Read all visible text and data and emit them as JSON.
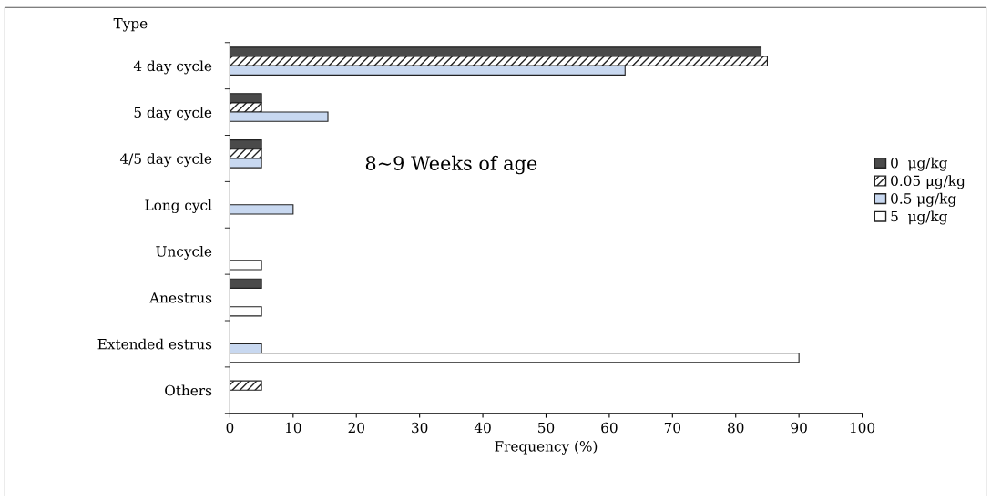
{
  "chart_data": {
    "type": "bar",
    "orientation": "horizontal",
    "ylabel": "Type",
    "xlabel": "Frequency (%)",
    "categories": [
      "4 day cycle",
      "5 day cycle",
      "4/5 day cycle",
      "Long cycl",
      "Uncycle",
      "Anestrus",
      "Extended estrus",
      "Others"
    ],
    "series": [
      {
        "name": "0  μg/kg",
        "color": "#4a4a4a",
        "values": [
          84,
          5,
          5,
          null,
          null,
          5,
          null,
          null
        ]
      },
      {
        "name": "0.05 μg/kg",
        "color": "#222222",
        "values": [
          85,
          5,
          5,
          null,
          null,
          null,
          null,
          5
        ]
      },
      {
        "name": "0.5 μg/kg",
        "color": "#c8d8f0",
        "values": [
          62.5,
          15.5,
          5,
          10,
          null,
          null,
          5,
          null
        ]
      },
      {
        "name": "5  μg/kg",
        "color": "#ffffff",
        "values": [
          null,
          null,
          null,
          null,
          5,
          5,
          90,
          null
        ]
      }
    ],
    "xlim": [
      0,
      100
    ],
    "xticks": [
      0,
      10,
      20,
      30,
      40,
      50,
      60,
      70,
      80,
      90,
      100
    ],
    "annotations": [
      "8∼9 Weeks of age"
    ],
    "legend": "right",
    "grid": false
  }
}
